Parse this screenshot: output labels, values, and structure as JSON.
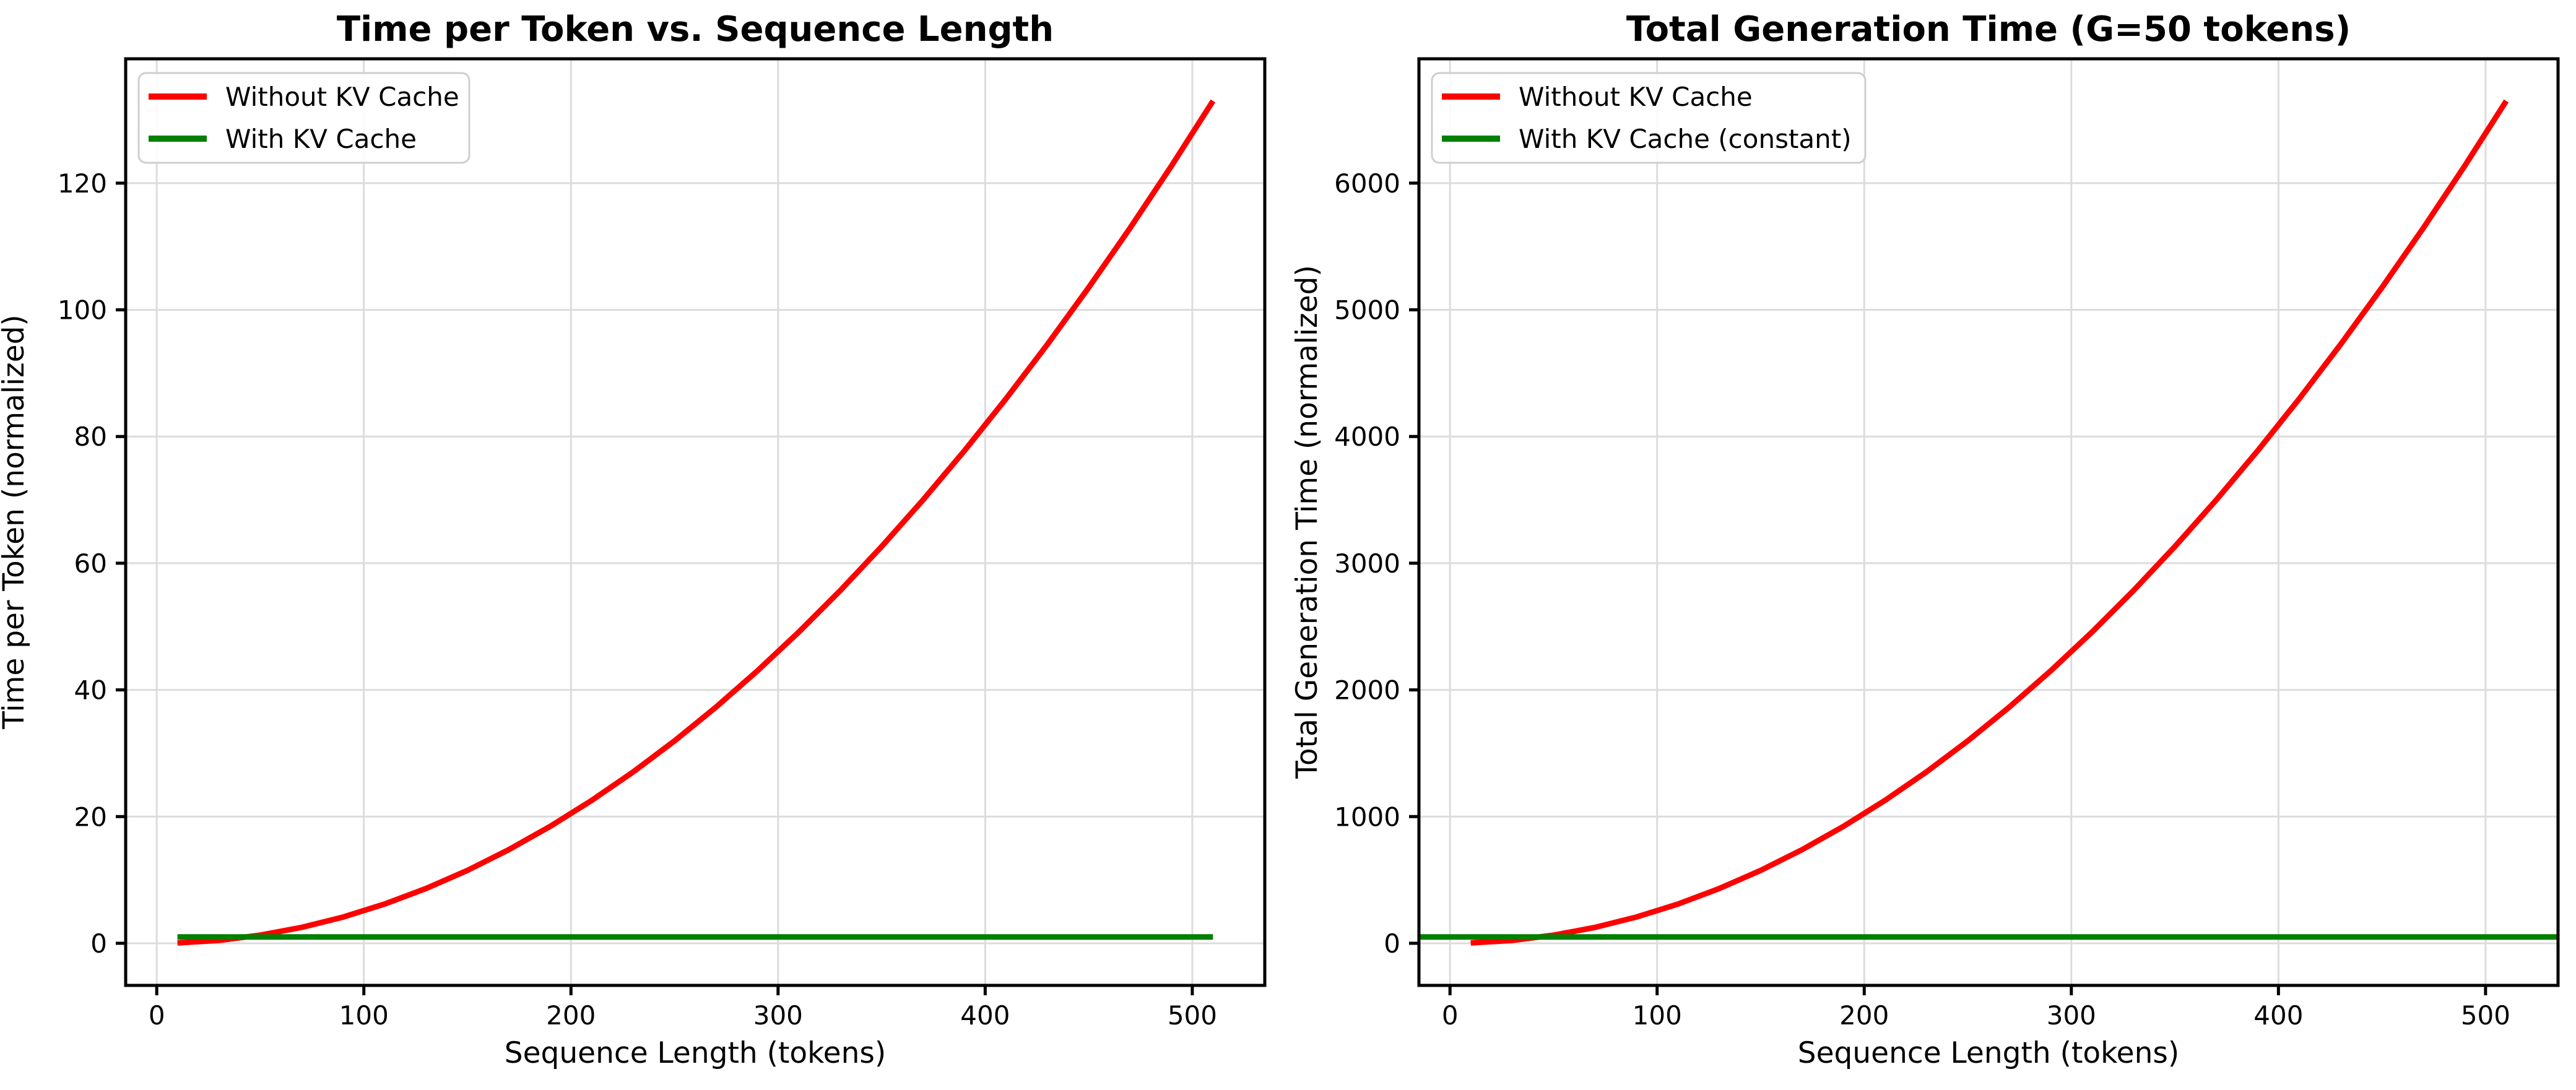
{
  "figure": {
    "background": "#ffffff",
    "style": {
      "grid_color": "#dcdcdc",
      "spine_color": "#000000",
      "tick_color": "#000000",
      "text_color": "#000000",
      "legend_border_color": "#cfcfcf",
      "legend_background": "#ffffff"
    }
  },
  "chart_data": [
    {
      "type": "line",
      "title": "Time per Token vs. Sequence Length",
      "xlabel": "Sequence Length (tokens)",
      "ylabel": "Time per Token (normalized)",
      "xlim": [
        -15,
        535
      ],
      "ylim": [
        -6.65,
        139.63
      ],
      "xticks": [
        0,
        100,
        200,
        300,
        400,
        500
      ],
      "yticks": [
        0,
        20,
        40,
        60,
        80,
        100,
        120
      ],
      "grid": true,
      "legend_position": "upper left",
      "series": [
        {
          "name": "Without KV Cache",
          "color": "#ff0000",
          "x": [
            10,
            30,
            50,
            70,
            90,
            110,
            130,
            150,
            170,
            190,
            210,
            230,
            250,
            270,
            290,
            310,
            330,
            350,
            370,
            390,
            410,
            430,
            450,
            470,
            490,
            510
          ],
          "values": [
            0.05,
            0.46,
            1.28,
            2.51,
            4.14,
            6.19,
            8.64,
            11.5,
            14.78,
            18.46,
            22.55,
            27.04,
            31.95,
            37.27,
            43.0,
            49.13,
            55.67,
            62.63,
            69.99,
            77.76,
            85.94,
            94.53,
            103.53,
            112.93,
            122.75,
            132.98
          ]
        },
        {
          "name": "With KV Cache",
          "color": "#008000",
          "x": [
            10,
            510
          ],
          "values": [
            1.0,
            1.0
          ]
        }
      ]
    },
    {
      "type": "line",
      "title": "Total Generation Time (G=50 tokens)",
      "xlabel": "Sequence Length (tokens)",
      "ylabel": "Total Generation Time (normalized)",
      "xlim": [
        -15,
        535
      ],
      "ylim": [
        -332.4,
        6981.2
      ],
      "xticks": [
        0,
        100,
        200,
        300,
        400,
        500
      ],
      "yticks": [
        0,
        1000,
        2000,
        3000,
        4000,
        5000,
        6000
      ],
      "grid": true,
      "legend_position": "upper left",
      "series": [
        {
          "name": "Without KV Cache",
          "color": "#ff0000",
          "x": [
            10,
            30,
            50,
            70,
            90,
            110,
            130,
            150,
            170,
            190,
            210,
            230,
            250,
            270,
            290,
            310,
            330,
            350,
            370,
            390,
            410,
            430,
            450,
            470,
            490,
            510
          ],
          "values": [
            2.6,
            23.0,
            63.9,
            125.3,
            207.1,
            309.3,
            432.0,
            575.2,
            738.8,
            922.8,
            1127.3,
            1352.2,
            1597.6,
            1863.5,
            2149.8,
            2456.5,
            2783.7,
            3131.4,
            3499.5,
            3888.0,
            4297.0,
            4726.5,
            5176.4,
            5646.7,
            6137.5,
            6648.8
          ]
        },
        {
          "name": "With KV Cache (constant)",
          "color": "#008000",
          "x": [
            -15,
            535
          ],
          "values": [
            50.0,
            50.0
          ]
        }
      ]
    }
  ]
}
